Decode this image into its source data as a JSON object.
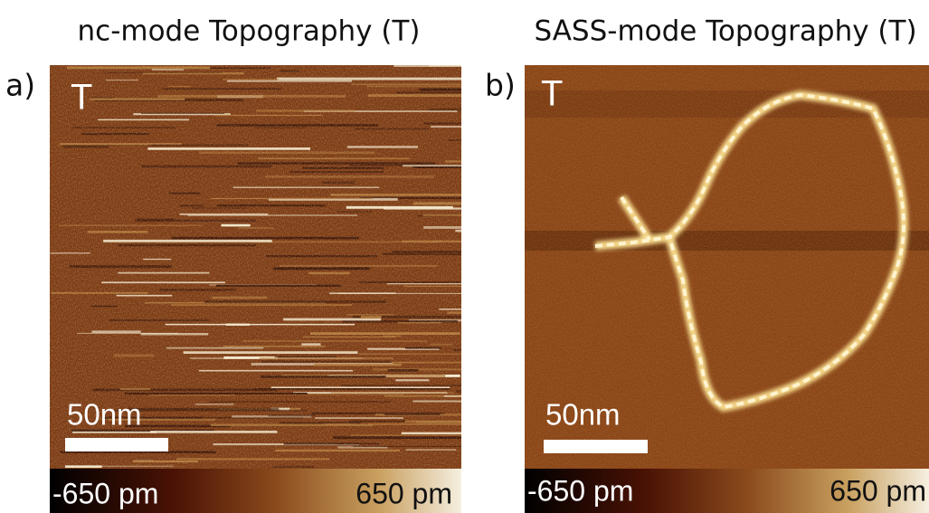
{
  "panels": [
    {
      "title": "nc-mode Topography (T)",
      "label": "a)",
      "channel": "T",
      "scale_bar": "50nm",
      "colorbar": {
        "min": "-650 pm",
        "max": "650 pm"
      }
    },
    {
      "title": "SASS-mode Topography (T)",
      "label": "b)",
      "channel": "T",
      "scale_bar": "50nm",
      "colorbar": {
        "min": "-650 pm",
        "max": "650 pm"
      }
    }
  ]
}
